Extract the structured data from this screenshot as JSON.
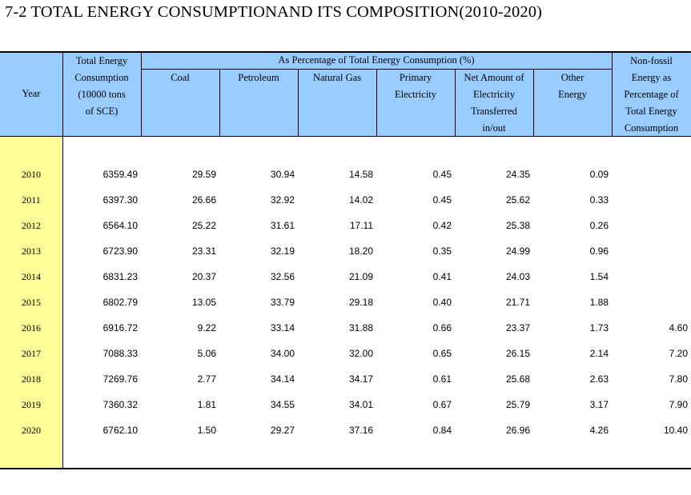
{
  "title": "7-2  TOTAL ENERGY CONSUMPTIONAND ITS COMPOSITION(2010-2020)",
  "headers": {
    "year": "Year",
    "total": "Total Energy\nConsumption\n(10000 tons\nof SCE)",
    "group": "As Percentage of Total Energy Consumption (%)",
    "coal": "Coal",
    "petroleum": "Petroleum",
    "natural_gas": "Natural Gas",
    "primary_electricity": "Primary\nElectricity",
    "net_electricity": "Net Amount of\nElectricity\nTransferred\nin/out",
    "other_energy": "Other\nEnergy",
    "non_fossil": "Non-fossil\nEnergy as\nPercentage of\nTotal Energy\nConsumption"
  },
  "rows": [
    {
      "year": "2010",
      "total": "6359.49",
      "coal": "29.59",
      "petroleum": "30.94",
      "natural_gas": "14.58",
      "primary_electricity": "0.45",
      "net_electricity": "24.35",
      "other_energy": "0.09",
      "non_fossil": ""
    },
    {
      "year": "2011",
      "total": "6397.30",
      "coal": "26.66",
      "petroleum": "32.92",
      "natural_gas": "14.02",
      "primary_electricity": "0.45",
      "net_electricity": "25.62",
      "other_energy": "0.33",
      "non_fossil": ""
    },
    {
      "year": "2012",
      "total": "6564.10",
      "coal": "25.22",
      "petroleum": "31.61",
      "natural_gas": "17.11",
      "primary_electricity": "0.42",
      "net_electricity": "25.38",
      "other_energy": "0.26",
      "non_fossil": ""
    },
    {
      "year": "2013",
      "total": "6723.90",
      "coal": "23.31",
      "petroleum": "32.19",
      "natural_gas": "18.20",
      "primary_electricity": "0.35",
      "net_electricity": "24.99",
      "other_energy": "0.96",
      "non_fossil": ""
    },
    {
      "year": "2014",
      "total": "6831.23",
      "coal": "20.37",
      "petroleum": "32.56",
      "natural_gas": "21.09",
      "primary_electricity": "0.41",
      "net_electricity": "24.03",
      "other_energy": "1.54",
      "non_fossil": ""
    },
    {
      "year": "2015",
      "total": "6802.79",
      "coal": "13.05",
      "petroleum": "33.79",
      "natural_gas": "29.18",
      "primary_electricity": "0.40",
      "net_electricity": "21.71",
      "other_energy": "1.88",
      "non_fossil": ""
    },
    {
      "year": "2016",
      "total": "6916.72",
      "coal": "9.22",
      "petroleum": "33.14",
      "natural_gas": "31.88",
      "primary_electricity": "0.66",
      "net_electricity": "23.37",
      "other_energy": "1.73",
      "non_fossil": "4.60"
    },
    {
      "year": "2017",
      "total": "7088.33",
      "coal": "5.06",
      "petroleum": "34.00",
      "natural_gas": "32.00",
      "primary_electricity": "0.65",
      "net_electricity": "26.15",
      "other_energy": "2.14",
      "non_fossil": "7.20"
    },
    {
      "year": "2018",
      "total": "7269.76",
      "coal": "2.77",
      "petroleum": "34.14",
      "natural_gas": "34.17",
      "primary_electricity": "0.61",
      "net_electricity": "25.68",
      "other_energy": "2.63",
      "non_fossil": "7.80"
    },
    {
      "year": "2019",
      "total": "7360.32",
      "coal": "1.81",
      "petroleum": "34.55",
      "natural_gas": "34.01",
      "primary_electricity": "0.67",
      "net_electricity": "25.79",
      "other_energy": "3.17",
      "non_fossil": "7.90"
    },
    {
      "year": "2020",
      "total": "6762.10",
      "coal": "1.50",
      "petroleum": "29.27",
      "natural_gas": "37.16",
      "primary_electricity": "0.84",
      "net_electricity": "26.96",
      "other_energy": "4.26",
      "non_fossil": "10.40"
    }
  ],
  "colors": {
    "header_bg": "#99ccff",
    "year_column_bg": "#ffff99"
  }
}
